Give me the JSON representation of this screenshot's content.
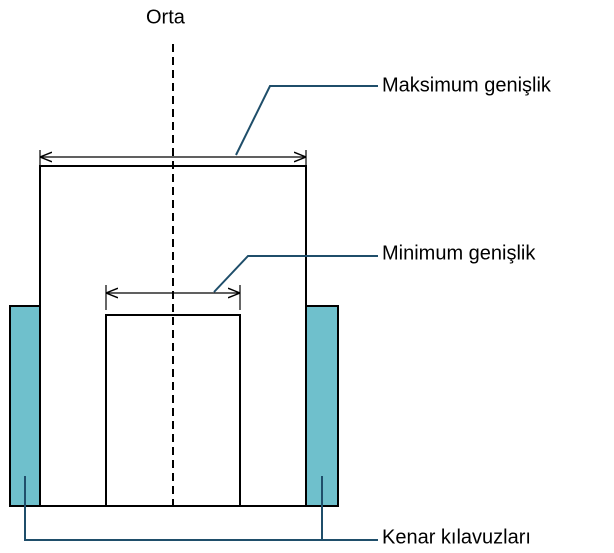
{
  "labels": {
    "center": "Orta",
    "max_width": "Maksimum genişlik",
    "min_width": "Minimum genişlik",
    "edge_guides": "Kenar kılavuzları"
  }
}
